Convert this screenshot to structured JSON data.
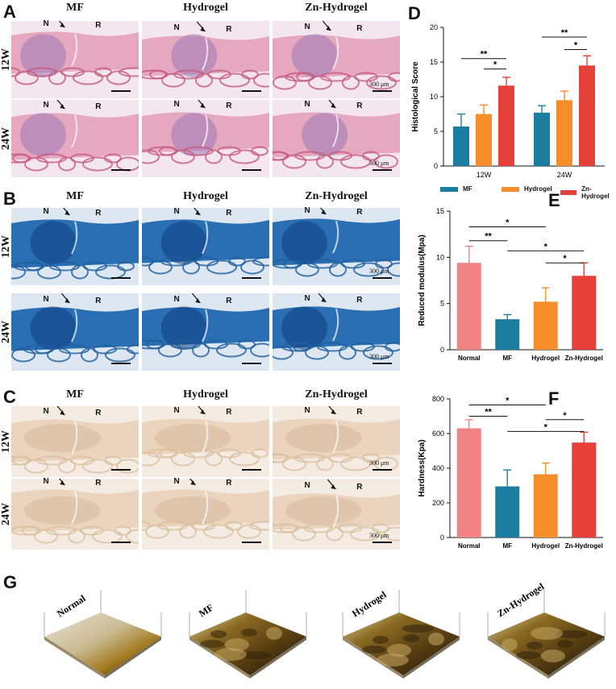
{
  "panels": {
    "A": "A",
    "B": "B",
    "C": "C",
    "D": "D",
    "E": "E",
    "F": "F",
    "G": "G"
  },
  "histology": {
    "columns": [
      "MF",
      "Hydrogel",
      "Zn-Hydrogel"
    ],
    "rows": [
      "12W",
      "24W"
    ],
    "marks": {
      "n": "N",
      "r": "R"
    },
    "scale_label": "300 μm",
    "A": {
      "tissue": "#e6a8bf",
      "bone": "#c55b7d",
      "stain": "#9a79b7",
      "bg": "#f4e6ee"
    },
    "B": {
      "tissue": "#2a6fb3",
      "bone": "#1f5f9e",
      "stain": "#0f3d7f",
      "bg": "#dde7f1"
    },
    "C": {
      "tissue": "#ead4bd",
      "bone": "#dbbf9f",
      "stain": "#c9a98a",
      "bg": "#f4ece3"
    }
  },
  "colors": {
    "mf": "#1b7ea1",
    "hydrogel": "#f58e2a",
    "zn": "#e6403b",
    "normal": "#f08283"
  },
  "chart_D": {
    "type": "bar",
    "ylabel": "Histological Score",
    "ylim": [
      0,
      20
    ],
    "yticks": [
      "0",
      "5",
      "10",
      "15",
      "20"
    ],
    "categories": [
      "12W",
      "24W"
    ],
    "series": [
      {
        "name": "MF",
        "values": [
          5.7,
          7.7
        ],
        "errors": [
          1.8,
          1.0
        ]
      },
      {
        "name": "Hydrogel",
        "values": [
          7.5,
          9.5
        ],
        "errors": [
          1.3,
          1.3
        ]
      },
      {
        "name": "Zn-Hydrogel",
        "values": [
          11.6,
          14.5
        ],
        "errors": [
          1.2,
          1.4
        ]
      }
    ],
    "sig": [
      "**",
      "*",
      "**",
      "*"
    ]
  },
  "chart_E": {
    "type": "bar",
    "ylabel": "Reduced modulus(Mpa)",
    "ylim": [
      0,
      15
    ],
    "yticks": [
      "0",
      "5",
      "10",
      "15"
    ],
    "categories": [
      "Normal",
      "MF",
      "Hydrogel",
      "Zn-Hydrogel"
    ],
    "values": [
      9.4,
      3.3,
      5.2,
      8.0
    ],
    "errors": [
      1.8,
      0.5,
      1.5,
      1.4
    ],
    "sig": [
      "*",
      "**",
      "*",
      "*"
    ]
  },
  "chart_F": {
    "type": "bar",
    "ylabel": "Hardness(Kpa)",
    "ylim": [
      0,
      800
    ],
    "yticks": [
      "0",
      "200",
      "400",
      "600",
      "800"
    ],
    "categories": [
      "Normal",
      "MF",
      "Hydrogel",
      "Zn-Hydrogel"
    ],
    "values": [
      630,
      295,
      365,
      548
    ],
    "errors": [
      50,
      95,
      65,
      60
    ],
    "sig": [
      "*",
      "**",
      "*",
      "*"
    ]
  },
  "afm": {
    "labels": [
      "Normal",
      "MF",
      "Hydrogel",
      "Zn-Hydrogel"
    ]
  }
}
